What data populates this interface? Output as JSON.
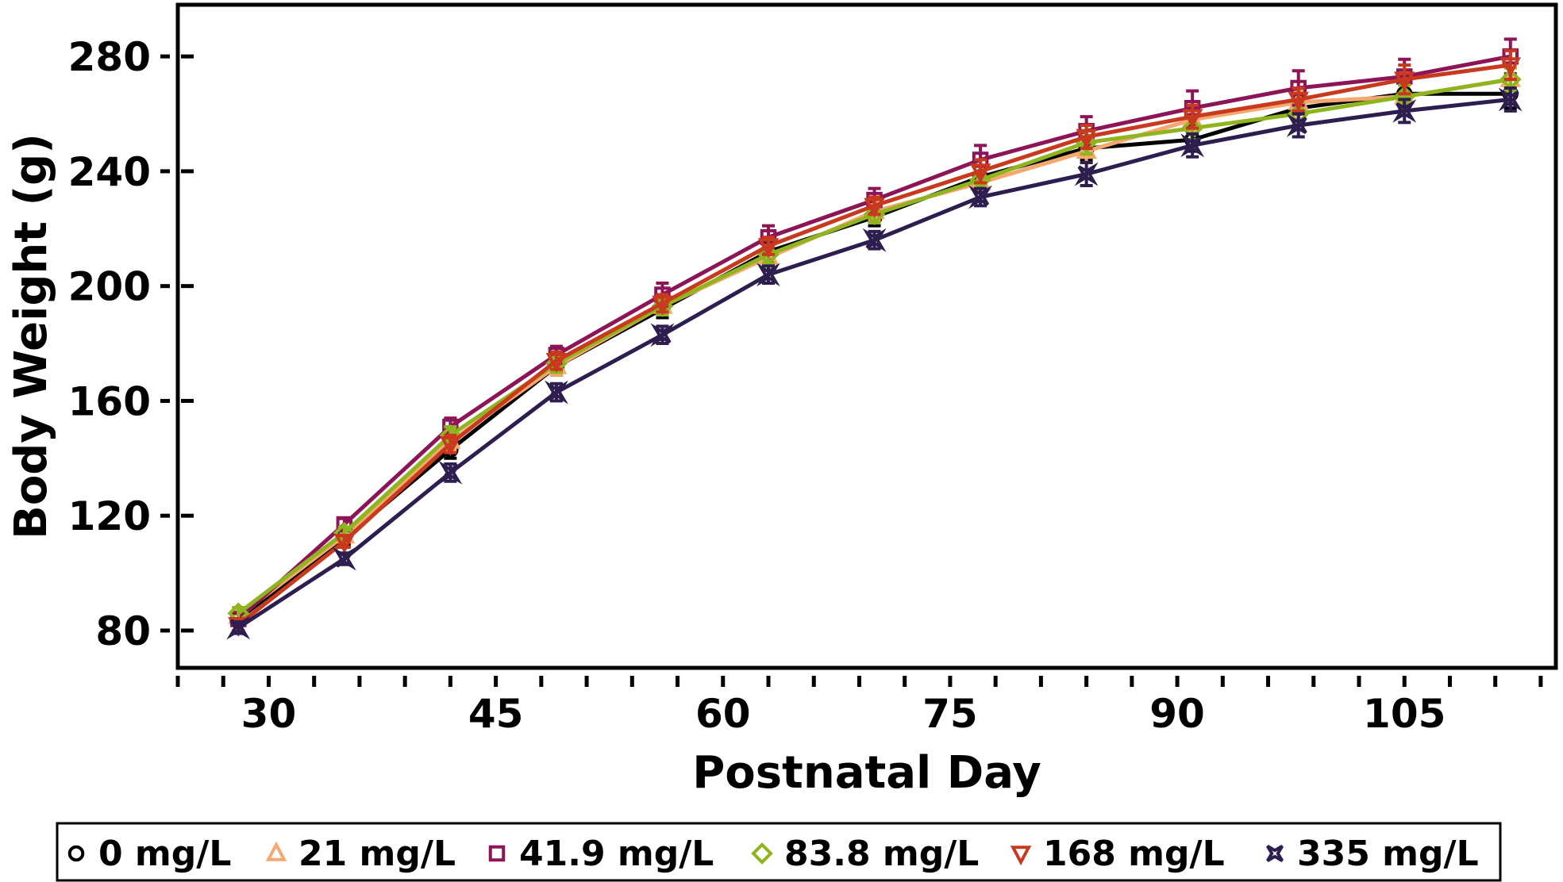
{
  "chart_data": {
    "type": "line",
    "xlabel": "Postnatal Day",
    "ylabel": "Body Weight (g)",
    "xlim": [
      24,
      115
    ],
    "ylim": [
      67,
      298
    ],
    "xticks": [
      30,
      45,
      60,
      75,
      90,
      105
    ],
    "yticks": [
      80,
      120,
      160,
      200,
      240,
      280
    ],
    "x_minor_ticks": [
      24,
      27,
      30,
      33,
      36,
      39,
      42,
      45,
      48,
      51,
      54,
      57,
      60,
      63,
      66,
      69,
      72,
      75,
      78,
      81,
      84,
      87,
      90,
      93,
      96,
      99,
      102,
      105,
      108,
      111,
      114
    ],
    "legend_position": "bottom",
    "x": [
      28,
      35,
      42,
      49,
      56,
      63,
      70,
      77,
      84,
      91,
      98,
      105,
      112
    ],
    "series": [
      {
        "name": "0 mg/L",
        "color": "#000000",
        "marker": "circle",
        "values": [
          84,
          112,
          143,
          172,
          192,
          212,
          224,
          238,
          248,
          251,
          262,
          267,
          267
        ],
        "errors": [
          2,
          2,
          3,
          3,
          3,
          3,
          3,
          4,
          4,
          4,
          4,
          4,
          5
        ]
      },
      {
        "name": "21 mg/L",
        "color": "#f4a86f",
        "marker": "triangle-up",
        "values": [
          85,
          113,
          146,
          172,
          193,
          210,
          226,
          236,
          247,
          258,
          264,
          266,
          272
        ],
        "errors": [
          2,
          2,
          3,
          3,
          3,
          3,
          3,
          3,
          4,
          4,
          4,
          4,
          4
        ]
      },
      {
        "name": "41.9 mg/L",
        "color": "#8c1457",
        "marker": "square",
        "values": [
          84,
          117,
          151,
          176,
          197,
          217,
          230,
          244,
          254,
          262,
          269,
          273,
          280
        ],
        "errors": [
          2,
          2,
          3,
          3,
          4,
          4,
          4,
          5,
          5,
          6,
          6,
          6,
          6
        ]
      },
      {
        "name": "83.8 mg/L",
        "color": "#8fb41e",
        "marker": "diamond",
        "values": [
          86,
          114,
          148,
          173,
          193,
          211,
          225,
          237,
          250,
          255,
          260,
          266,
          272
        ],
        "errors": [
          2,
          2,
          3,
          3,
          3,
          3,
          3,
          3,
          4,
          4,
          4,
          4,
          4
        ]
      },
      {
        "name": "168 mg/L",
        "color": "#c8391e",
        "marker": "triangle-down",
        "values": [
          82,
          111,
          145,
          174,
          194,
          214,
          228,
          240,
          252,
          259,
          265,
          272,
          277
        ],
        "errors": [
          2,
          2,
          3,
          3,
          3,
          3,
          3,
          4,
          4,
          4,
          4,
          5,
          5
        ]
      },
      {
        "name": "335 mg/L",
        "color": "#2d1e4f",
        "marker": "star4",
        "values": [
          81,
          105,
          135,
          163,
          183,
          204,
          216,
          231,
          239,
          249,
          256,
          261,
          265
        ],
        "errors": [
          2,
          2,
          3,
          3,
          3,
          3,
          3,
          3,
          4,
          4,
          4,
          4,
          4
        ]
      }
    ]
  }
}
